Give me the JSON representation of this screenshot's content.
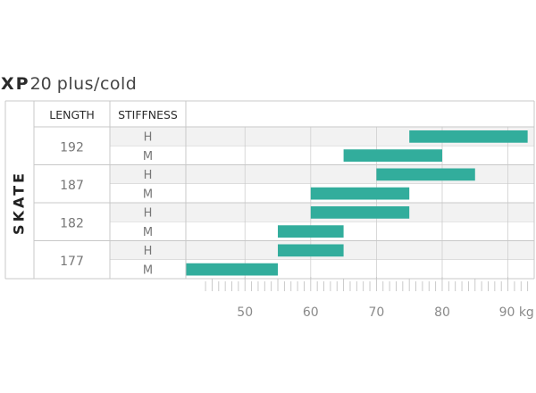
{
  "title": {
    "model": "XP",
    "number": "20",
    "suffix": "plus/cold"
  },
  "table": {
    "category": "SKATE",
    "headers": [
      "LENGTH",
      "STIFFNESS"
    ]
  },
  "colors": {
    "bar": "#32ad9c",
    "row_shade": "#f2f2f2",
    "grid": "#cfcfcf",
    "text": "#777777"
  },
  "chart_data": {
    "type": "bar",
    "orientation": "horizontal-range",
    "x_unit": "kg",
    "xlim": [
      41,
      94
    ],
    "x_ticks": [
      50,
      60,
      70,
      80,
      90
    ],
    "x_tick_labels": [
      "50",
      "60",
      "70",
      "80",
      "90 kg"
    ],
    "grid": true,
    "rows": [
      {
        "length": "192",
        "stiffness": "H",
        "min": 75,
        "max": 93
      },
      {
        "length": "192",
        "stiffness": "M",
        "min": 65,
        "max": 80
      },
      {
        "length": "187",
        "stiffness": "H",
        "min": 70,
        "max": 85
      },
      {
        "length": "187",
        "stiffness": "M",
        "min": 60,
        "max": 75
      },
      {
        "length": "182",
        "stiffness": "H",
        "min": 60,
        "max": 75
      },
      {
        "length": "182",
        "stiffness": "M",
        "min": 55,
        "max": 65
      },
      {
        "length": "177",
        "stiffness": "H",
        "min": 55,
        "max": 65
      },
      {
        "length": "177",
        "stiffness": "M",
        "min": 41,
        "max": 55
      }
    ]
  }
}
